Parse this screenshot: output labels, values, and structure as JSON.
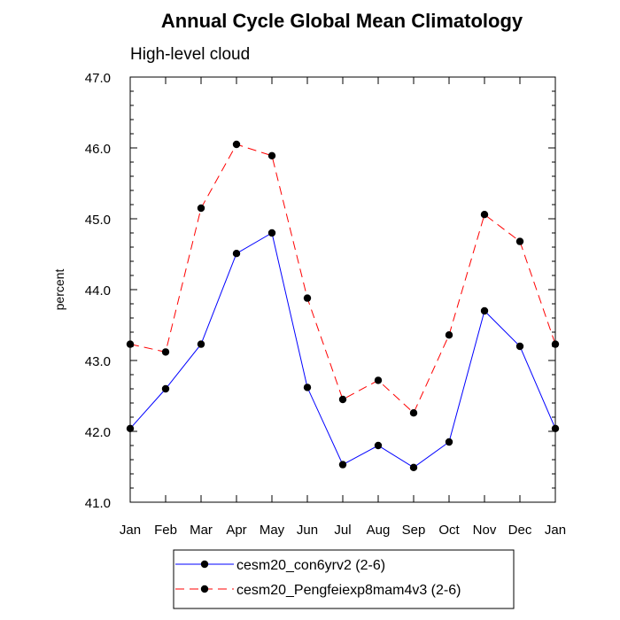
{
  "chart_data": {
    "type": "line",
    "title": "Annual Cycle Global Mean Climatology",
    "subtitle": "High-level cloud",
    "xlabel": "",
    "ylabel": "percent",
    "categories": [
      "Jan",
      "Feb",
      "Mar",
      "Apr",
      "May",
      "Jun",
      "Jul",
      "Aug",
      "Sep",
      "Oct",
      "Nov",
      "Dec",
      "Jan"
    ],
    "ylim": [
      41.0,
      47.0
    ],
    "y_ticks": [
      "41.0",
      "42.0",
      "43.0",
      "44.0",
      "45.0",
      "46.0",
      "47.0"
    ],
    "grid": false,
    "legend_position": "bottom-center",
    "series": [
      {
        "name": "cesm20_con6yrv2 (2-6)",
        "color": "#0000ff",
        "dash": "solid",
        "values": [
          42.04,
          42.6,
          43.23,
          44.51,
          44.8,
          42.62,
          41.53,
          41.8,
          41.49,
          41.85,
          43.7,
          43.2,
          42.04
        ]
      },
      {
        "name": "cesm20_Pengfeiexp8mam4v3 (2-6)",
        "color": "#ff0000",
        "dash": "dashed",
        "values": [
          43.23,
          43.12,
          45.15,
          46.05,
          45.89,
          43.88,
          42.45,
          42.72,
          42.26,
          43.36,
          45.06,
          44.68,
          43.23
        ]
      }
    ]
  }
}
